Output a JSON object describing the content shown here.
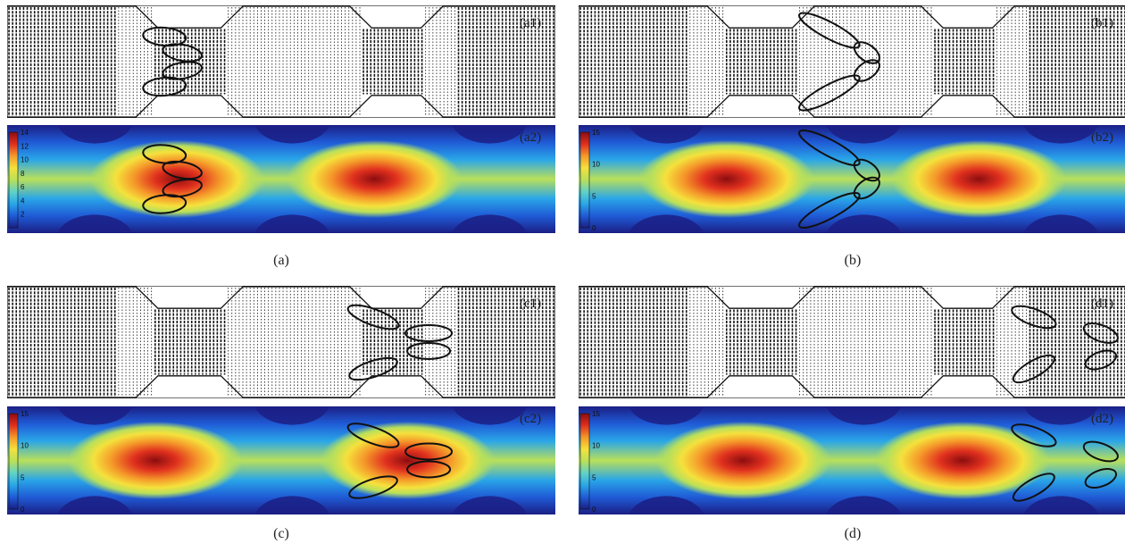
{
  "figure": {
    "panels": [
      {
        "id": "a",
        "caption": "(a)",
        "vector_label": "(a1)",
        "contour_label": "(a2)",
        "colorbar": {
          "ticks": [
            "14",
            "12",
            "10",
            "8",
            "6",
            "4",
            "2"
          ],
          "max": 14
        },
        "hot_spots": [
          0.31,
          0.67
        ],
        "cell_group": {
          "center": 0.3,
          "shape": "cluster"
        }
      },
      {
        "id": "b",
        "caption": "(b)",
        "vector_label": "(b1)",
        "contour_label": "(b2)",
        "colorbar": {
          "ticks": [
            "15",
            "10",
            "5",
            "0"
          ],
          "max": 15
        },
        "hot_spots": [
          0.27,
          0.73
        ],
        "cell_group": {
          "center": 0.49,
          "shape": "chevron"
        }
      },
      {
        "id": "c",
        "caption": "(c)",
        "vector_label": "(c1)",
        "contour_label": "(c2)",
        "colorbar": {
          "ticks": [
            "15",
            "10",
            "5",
            "0"
          ],
          "max": 15
        },
        "hot_spots": [
          0.27,
          0.73
        ],
        "cell_group": {
          "center": 0.72,
          "shape": "pairs"
        }
      },
      {
        "id": "d",
        "caption": "(d)",
        "vector_label": "(d1)",
        "contour_label": "(d2)",
        "colorbar": {
          "ticks": [
            "15",
            "10",
            "5",
            "0"
          ],
          "max": 15
        },
        "hot_spots": [
          0.3,
          0.7
        ],
        "cell_group": {
          "center": 0.92,
          "shape": "split"
        }
      }
    ],
    "colormap": [
      "#1b1f85",
      "#1f5bd6",
      "#2aa6e8",
      "#5fd2c8",
      "#b9e05a",
      "#f5e13c",
      "#f59a2a",
      "#e0301e",
      "#8c0d10"
    ]
  }
}
